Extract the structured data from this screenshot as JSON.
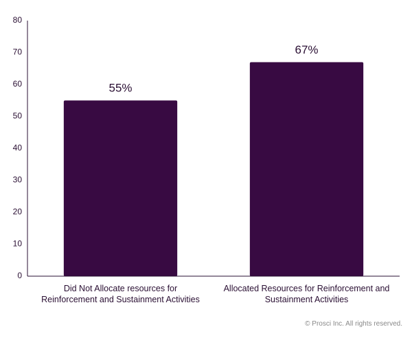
{
  "chart_data": {
    "type": "bar",
    "categories": [
      "Did Not Allocate resources for Reinforcement and Sustainment Activities",
      "Allocated Resources for Reinforcement and Sustainment Activities"
    ],
    "values": [
      55,
      67
    ],
    "value_labels": [
      "55%",
      "67%"
    ],
    "color": "#380a42",
    "ylim": [
      0,
      80
    ],
    "yticks": [
      0,
      10,
      20,
      30,
      40,
      50,
      60,
      70,
      80
    ],
    "grid": false
  },
  "footer": "© Prosci Inc. All rights reserved."
}
